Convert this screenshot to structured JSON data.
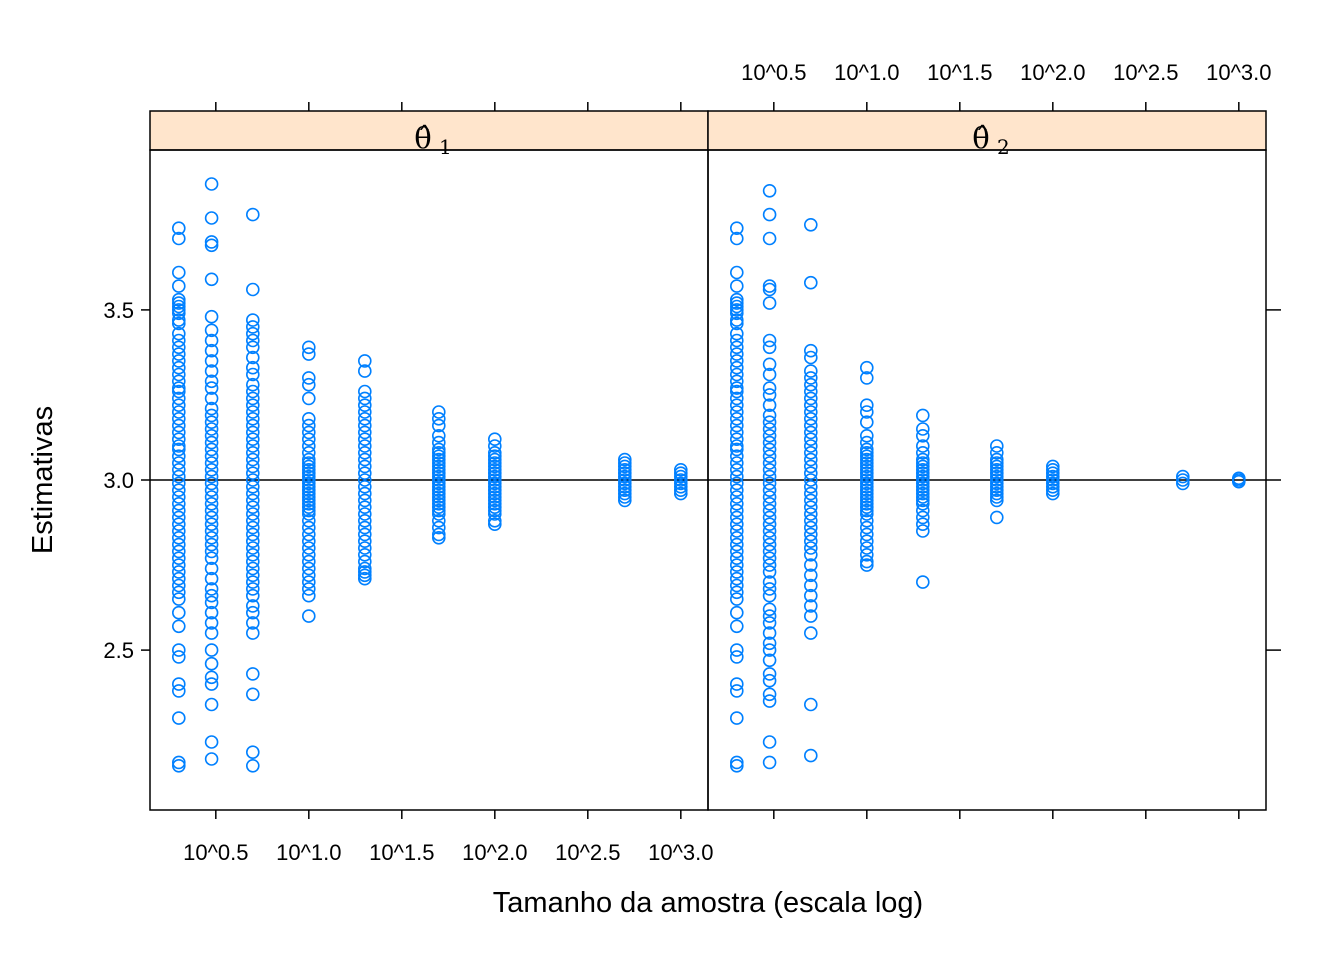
{
  "chart_data": {
    "type": "scatter",
    "xlabel": "Tamanho da amostra (escala log)",
    "ylabel": "Estimativas",
    "x_scale": "log10",
    "x_ticks": [
      {
        "value": 3.162,
        "label": "10^0.5"
      },
      {
        "value": 10,
        "label": "10^1.0"
      },
      {
        "value": 31.62,
        "label": "10^1.5"
      },
      {
        "value": 100,
        "label": "10^2.0"
      },
      {
        "value": 316.2,
        "label": "10^2.5"
      },
      {
        "value": 1000,
        "label": "10^3.0"
      }
    ],
    "y_ticks": [
      {
        "value": 2.5,
        "label": "2.5"
      },
      {
        "value": 3.0,
        "label": "3.0"
      },
      {
        "value": 3.5,
        "label": "3.5"
      }
    ],
    "xlim": [
      1.4,
      1400
    ],
    "ylim": [
      2.03,
      3.97
    ],
    "reference_line_y": 3.0,
    "point_color": "#0080ff",
    "strip_color": "#ffe5cc",
    "panels": [
      {
        "name": "θ̂",
        "subscript": "1",
        "groups": [
          {
            "n": 2,
            "values": [
              3.74,
              3.71,
              3.61,
              3.57,
              3.53,
              3.52,
              3.51,
              3.5,
              3.49,
              3.47,
              3.46,
              3.43,
              3.41,
              3.39,
              3.37,
              3.35,
              3.33,
              3.31,
              3.29,
              3.27,
              3.26,
              3.24,
              3.22,
              3.2,
              3.18,
              3.16,
              3.14,
              3.12,
              3.1,
              3.09,
              3.07,
              3.05,
              3.03,
              3.01,
              2.99,
              2.97,
              2.95,
              2.93,
              2.91,
              2.89,
              2.87,
              2.85,
              2.83,
              2.81,
              2.79,
              2.77,
              2.75,
              2.73,
              2.71,
              2.69,
              2.67,
              2.65,
              2.61,
              2.57,
              2.5,
              2.48,
              2.4,
              2.38,
              2.3,
              2.17,
              2.16
            ]
          },
          {
            "n": 3,
            "values": [
              3.87,
              3.77,
              3.7,
              3.69,
              3.59,
              3.48,
              3.44,
              3.41,
              3.38,
              3.35,
              3.32,
              3.29,
              3.27,
              3.24,
              3.21,
              3.19,
              3.17,
              3.15,
              3.13,
              3.11,
              3.09,
              3.07,
              3.05,
              3.03,
              3.01,
              2.99,
              2.97,
              2.95,
              2.93,
              2.91,
              2.89,
              2.87,
              2.85,
              2.83,
              2.81,
              2.79,
              2.77,
              2.74,
              2.71,
              2.68,
              2.66,
              2.64,
              2.61,
              2.58,
              2.55,
              2.5,
              2.46,
              2.42,
              2.4,
              2.34,
              2.23,
              2.18
            ]
          },
          {
            "n": 5,
            "values": [
              3.78,
              3.56,
              3.47,
              3.45,
              3.43,
              3.41,
              3.39,
              3.36,
              3.33,
              3.31,
              3.28,
              3.26,
              3.24,
              3.22,
              3.2,
              3.18,
              3.16,
              3.14,
              3.12,
              3.1,
              3.08,
              3.06,
              3.04,
              3.02,
              3.0,
              2.98,
              2.96,
              2.94,
              2.92,
              2.9,
              2.88,
              2.86,
              2.84,
              2.82,
              2.8,
              2.78,
              2.76,
              2.74,
              2.72,
              2.7,
              2.68,
              2.66,
              2.63,
              2.61,
              2.58,
              2.55,
              2.43,
              2.37,
              2.2,
              2.16
            ]
          },
          {
            "n": 10,
            "values": [
              3.39,
              3.37,
              3.3,
              3.28,
              3.24,
              3.18,
              3.16,
              3.14,
              3.12,
              3.1,
              3.08,
              3.06,
              3.05,
              3.04,
              3.03,
              3.02,
              3.01,
              3.0,
              2.99,
              2.98,
              2.97,
              2.96,
              2.95,
              2.94,
              2.93,
              2.92,
              2.91,
              2.9,
              2.88,
              2.86,
              2.84,
              2.82,
              2.8,
              2.78,
              2.76,
              2.74,
              2.72,
              2.7,
              2.68,
              2.66,
              2.6
            ]
          },
          {
            "n": 20,
            "values": [
              3.35,
              3.32,
              3.26,
              3.24,
              3.22,
              3.2,
              3.18,
              3.16,
              3.14,
              3.12,
              3.1,
              3.08,
              3.06,
              3.04,
              3.02,
              3.0,
              2.98,
              2.96,
              2.94,
              2.92,
              2.9,
              2.88,
              2.86,
              2.84,
              2.82,
              2.8,
              2.78,
              2.76,
              2.74,
              2.73,
              2.72,
              2.71
            ]
          },
          {
            "n": 50,
            "values": [
              3.2,
              3.18,
              3.16,
              3.13,
              3.11,
              3.09,
              3.08,
              3.07,
              3.06,
              3.05,
              3.04,
              3.03,
              3.02,
              3.01,
              3.0,
              2.99,
              2.98,
              2.97,
              2.96,
              2.95,
              2.94,
              2.93,
              2.92,
              2.91,
              2.9,
              2.88,
              2.86,
              2.84,
              2.83
            ]
          },
          {
            "n": 100,
            "values": [
              3.12,
              3.1,
              3.08,
              3.07,
              3.06,
              3.05,
              3.04,
              3.03,
              3.02,
              3.01,
              3.0,
              2.99,
              2.98,
              2.97,
              2.96,
              2.95,
              2.94,
              2.93,
              2.92,
              2.91,
              2.9,
              2.88,
              2.87
            ]
          },
          {
            "n": 500,
            "values": [
              3.06,
              3.05,
              3.04,
              3.03,
              3.02,
              3.01,
              3.0,
              2.99,
              2.98,
              2.97,
              2.96,
              2.95,
              2.94
            ]
          },
          {
            "n": 1000,
            "values": [
              3.03,
              3.02,
              3.01,
              3.0,
              2.99,
              2.98,
              2.97,
              2.96
            ]
          }
        ]
      },
      {
        "name": "θ̂",
        "subscript": "2",
        "groups": [
          {
            "n": 2,
            "values": [
              3.74,
              3.71,
              3.61,
              3.57,
              3.53,
              3.52,
              3.51,
              3.5,
              3.49,
              3.47,
              3.46,
              3.43,
              3.41,
              3.39,
              3.37,
              3.35,
              3.33,
              3.31,
              3.29,
              3.27,
              3.26,
              3.24,
              3.22,
              3.2,
              3.18,
              3.16,
              3.14,
              3.12,
              3.1,
              3.09,
              3.07,
              3.05,
              3.03,
              3.01,
              2.99,
              2.97,
              2.95,
              2.93,
              2.91,
              2.89,
              2.87,
              2.85,
              2.83,
              2.81,
              2.79,
              2.77,
              2.75,
              2.73,
              2.71,
              2.69,
              2.67,
              2.65,
              2.61,
              2.57,
              2.5,
              2.48,
              2.4,
              2.38,
              2.3,
              2.17,
              2.16
            ]
          },
          {
            "n": 3,
            "values": [
              3.85,
              3.78,
              3.71,
              3.57,
              3.56,
              3.52,
              3.41,
              3.39,
              3.34,
              3.31,
              3.27,
              3.25,
              3.22,
              3.19,
              3.17,
              3.15,
              3.13,
              3.11,
              3.09,
              3.07,
              3.05,
              3.03,
              3.01,
              2.99,
              2.97,
              2.95,
              2.93,
              2.91,
              2.89,
              2.87,
              2.85,
              2.83,
              2.81,
              2.79,
              2.77,
              2.75,
              2.73,
              2.7,
              2.68,
              2.66,
              2.62,
              2.6,
              2.58,
              2.55,
              2.52,
              2.5,
              2.47,
              2.43,
              2.41,
              2.37,
              2.35,
              2.23,
              2.17
            ]
          },
          {
            "n": 5,
            "values": [
              3.75,
              3.58,
              3.38,
              3.36,
              3.32,
              3.3,
              3.28,
              3.26,
              3.24,
              3.22,
              3.2,
              3.18,
              3.16,
              3.14,
              3.12,
              3.1,
              3.08,
              3.06,
              3.04,
              3.02,
              3.0,
              2.98,
              2.96,
              2.94,
              2.92,
              2.9,
              2.88,
              2.86,
              2.84,
              2.82,
              2.8,
              2.78,
              2.75,
              2.72,
              2.69,
              2.66,
              2.63,
              2.6,
              2.55,
              2.34,
              2.19
            ]
          },
          {
            "n": 10,
            "values": [
              3.33,
              3.3,
              3.22,
              3.2,
              3.17,
              3.13,
              3.11,
              3.09,
              3.08,
              3.07,
              3.06,
              3.05,
              3.04,
              3.03,
              3.02,
              3.01,
              3.0,
              2.99,
              2.98,
              2.97,
              2.96,
              2.95,
              2.94,
              2.93,
              2.92,
              2.91,
              2.9,
              2.88,
              2.86,
              2.84,
              2.82,
              2.8,
              2.78,
              2.76,
              2.75
            ]
          },
          {
            "n": 20,
            "values": [
              3.19,
              3.15,
              3.13,
              3.1,
              3.08,
              3.06,
              3.05,
              3.04,
              3.03,
              3.02,
              3.01,
              3.0,
              2.99,
              2.98,
              2.97,
              2.96,
              2.95,
              2.94,
              2.93,
              2.91,
              2.89,
              2.87,
              2.85,
              2.7
            ]
          },
          {
            "n": 50,
            "values": [
              3.1,
              3.08,
              3.06,
              3.05,
              3.04,
              3.03,
              3.02,
              3.01,
              3.0,
              2.99,
              2.98,
              2.97,
              2.96,
              2.95,
              2.94,
              2.89
            ]
          },
          {
            "n": 100,
            "values": [
              3.04,
              3.03,
              3.02,
              3.01,
              3.0,
              2.99,
              2.98,
              2.97,
              2.96
            ]
          },
          {
            "n": 500,
            "values": [
              3.01,
              3.0,
              2.99
            ]
          },
          {
            "n": 1000,
            "values": [
              3.005,
              3.0,
              2.995
            ]
          }
        ]
      }
    ]
  }
}
